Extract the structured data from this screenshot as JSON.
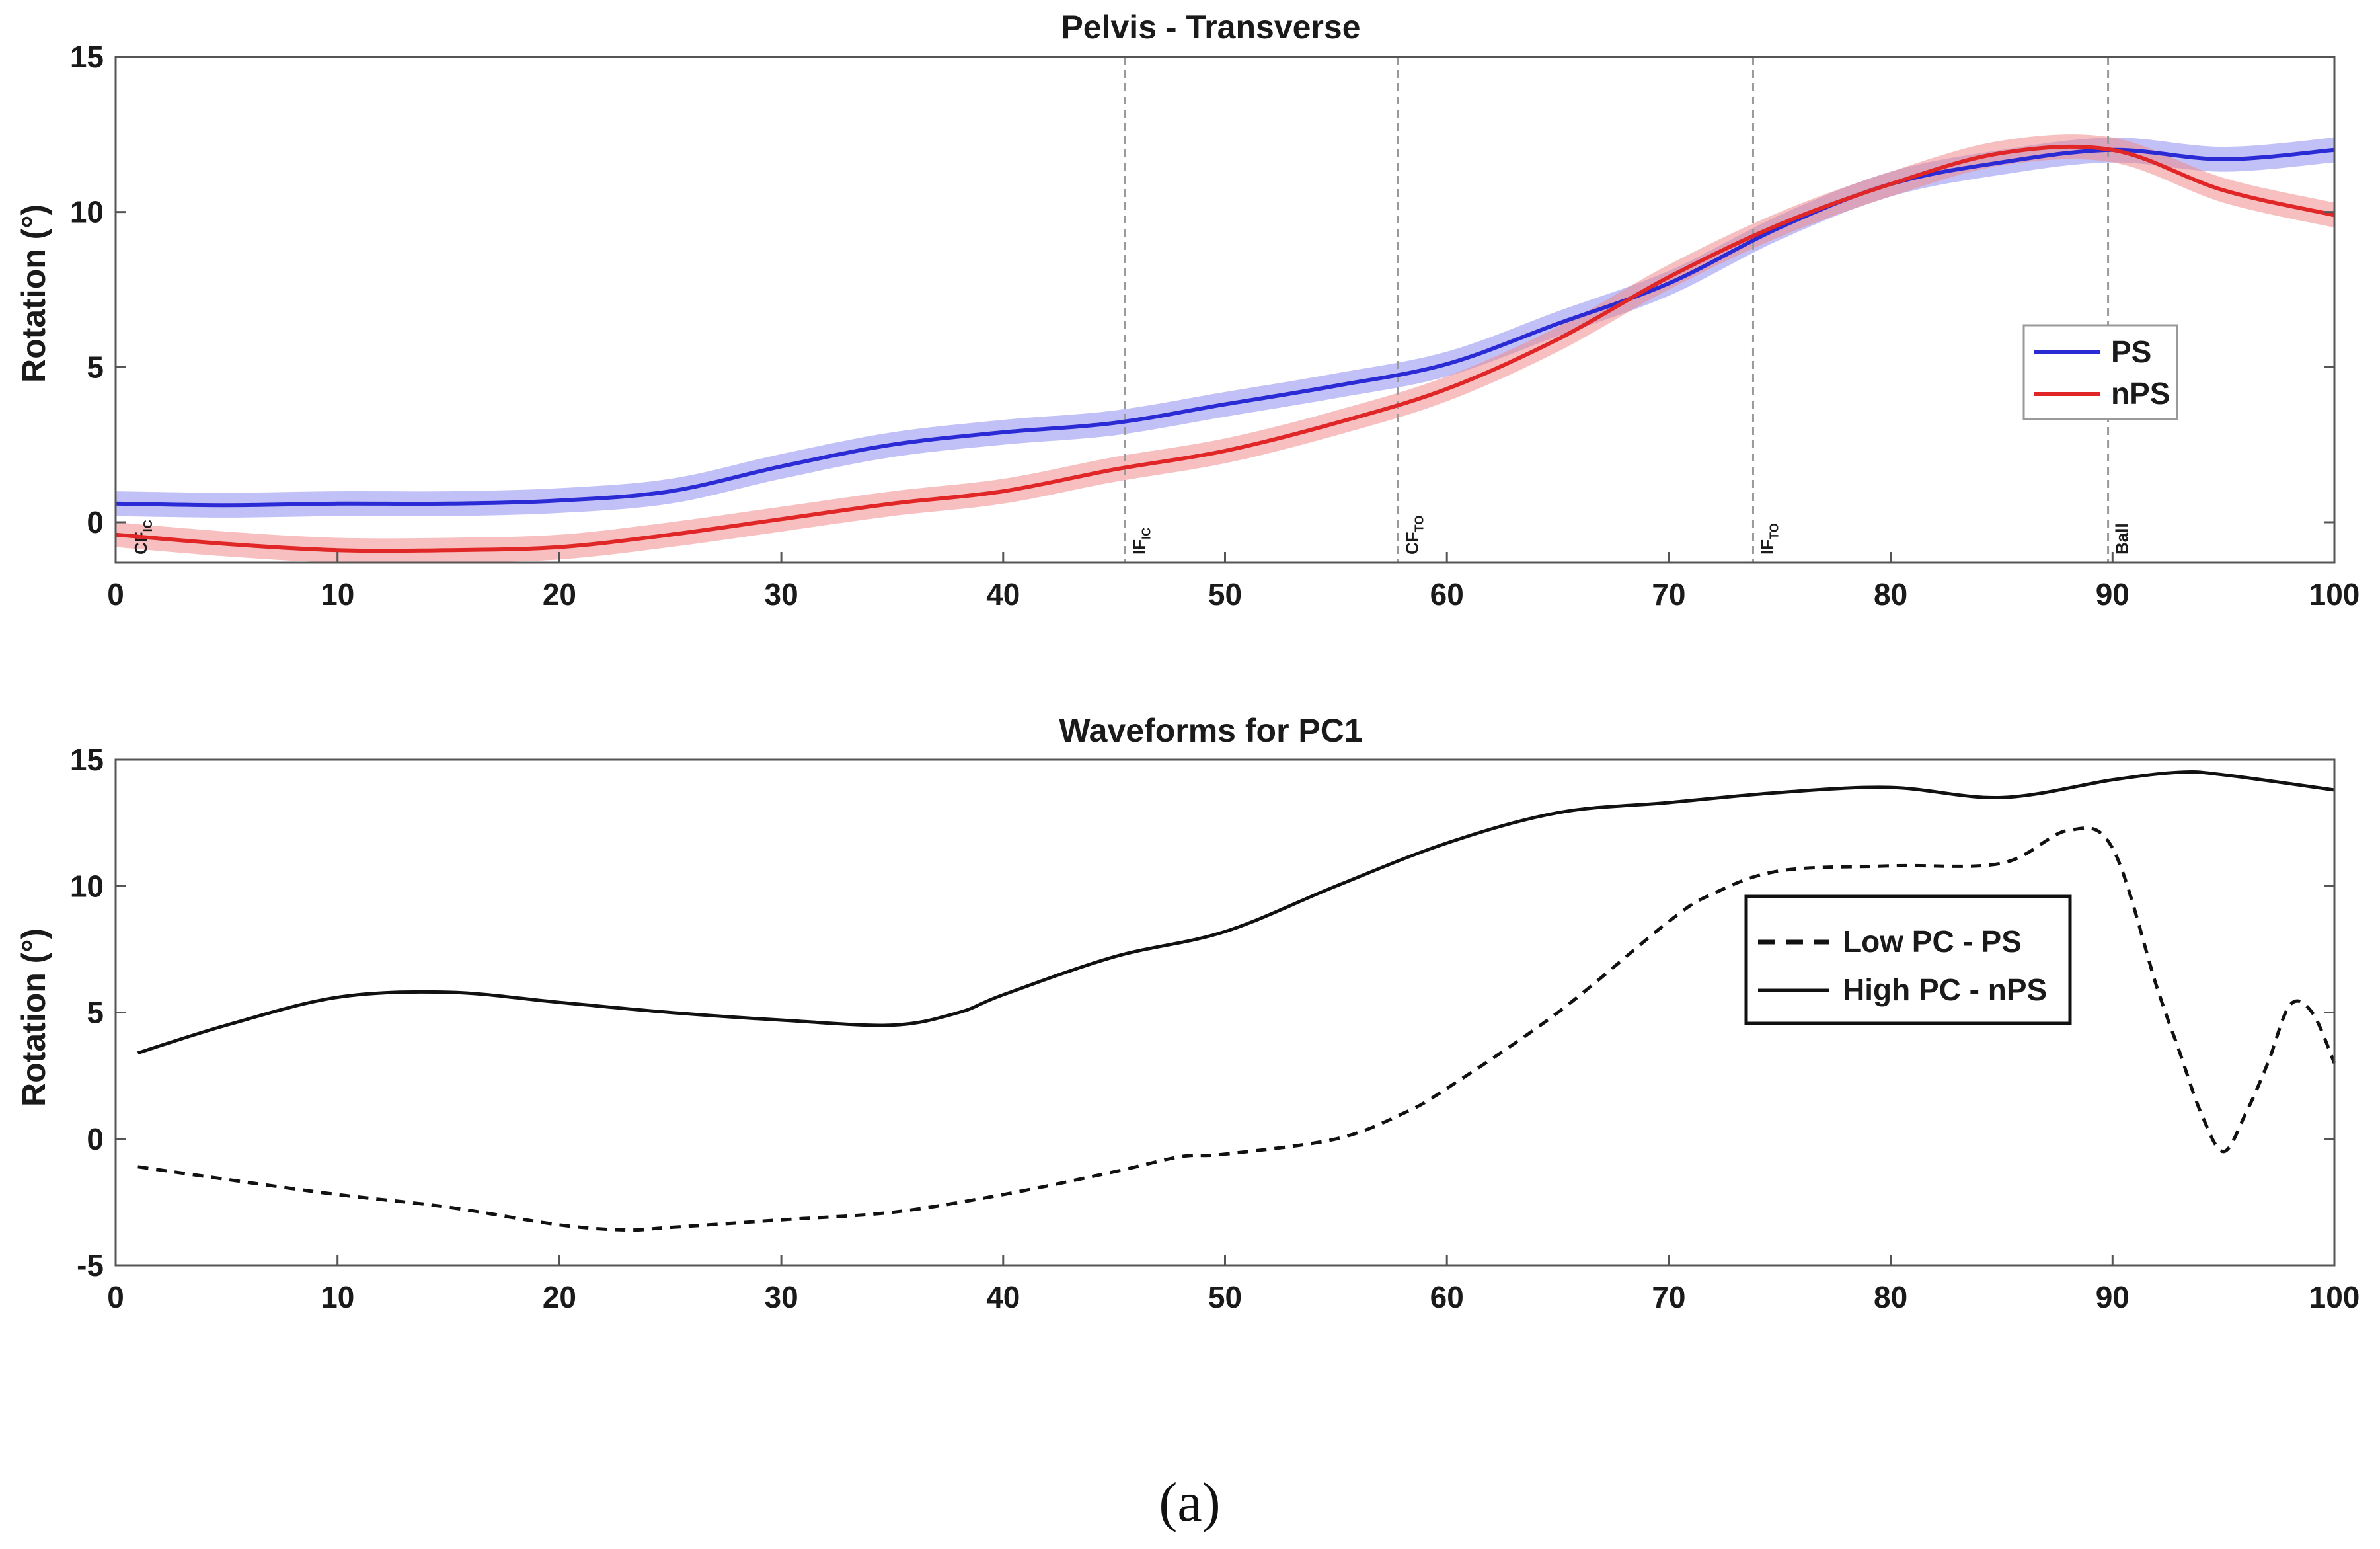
{
  "caption": "(a)",
  "colors": {
    "ps": "#2b2bd6",
    "nps": "#e02626",
    "band_ps": "#8e8ef0",
    "band_nps": "#f08a8a",
    "black": "#111111",
    "grid": "#9a9a9a"
  },
  "chart_data": [
    {
      "type": "line",
      "title": "Pelvis - Transverse",
      "xlabel": "",
      "ylabel": "Rotation (°)",
      "xlim": [
        0,
        100
      ],
      "ylim": [
        -1.3,
        15
      ],
      "xticks": [
        "0",
        "10",
        "20",
        "30",
        "40",
        "50",
        "60",
        "70",
        "80",
        "90",
        "100"
      ],
      "yticks": [
        "0",
        "5",
        "10",
        "15"
      ],
      "legend": {
        "position": "right-middle",
        "entries": [
          "PS",
          "nPS"
        ]
      },
      "events": [
        {
          "x": 0.5,
          "label": "CF",
          "sub": "IC"
        },
        {
          "x": 45.5,
          "label": "IF",
          "sub": "IC"
        },
        {
          "x": 57.8,
          "label": "CF",
          "sub": "TO"
        },
        {
          "x": 73.8,
          "label": "IF",
          "sub": "TO"
        },
        {
          "x": 89.8,
          "label": "Ball",
          "sub": ""
        }
      ],
      "series": [
        {
          "name": "PS",
          "style": "solid",
          "color_key": "ps",
          "band": 0.4,
          "x": [
            0,
            5,
            10,
            15,
            20,
            25,
            30,
            35,
            40,
            45,
            50,
            55,
            60,
            65,
            70,
            75,
            80,
            85,
            90,
            95,
            100
          ],
          "y": [
            0.6,
            0.55,
            0.6,
            0.6,
            0.7,
            1.0,
            1.8,
            2.5,
            2.9,
            3.2,
            3.8,
            4.4,
            5.1,
            6.4,
            7.7,
            9.5,
            10.9,
            11.6,
            12.0,
            11.7,
            12.0
          ]
        },
        {
          "name": "nPS",
          "style": "solid",
          "color_key": "nps",
          "band": 0.4,
          "x": [
            0,
            5,
            10,
            15,
            20,
            25,
            30,
            35,
            40,
            45,
            50,
            55,
            60,
            65,
            70,
            75,
            80,
            85,
            90,
            95,
            100
          ],
          "y": [
            -0.4,
            -0.7,
            -0.9,
            -0.9,
            -0.8,
            -0.4,
            0.1,
            0.6,
            1.0,
            1.7,
            2.3,
            3.2,
            4.3,
            5.9,
            7.9,
            9.6,
            10.9,
            11.9,
            12.0,
            10.7,
            9.9
          ]
        }
      ]
    },
    {
      "type": "line",
      "title": "Waveforms for PC1",
      "xlabel": "",
      "ylabel": "Rotation (°)",
      "xlim": [
        0,
        100
      ],
      "ylim": [
        -5,
        15
      ],
      "xticks": [
        "0",
        "10",
        "20",
        "30",
        "40",
        "50",
        "60",
        "70",
        "80",
        "90",
        "100"
      ],
      "yticks": [
        "-5",
        "0",
        "5",
        "10",
        "15"
      ],
      "legend": {
        "position": "right-middle",
        "entries": [
          "Low PC - PS",
          "High PC - nPS"
        ]
      },
      "series": [
        {
          "name": "Low PC - PS",
          "style": "dashed",
          "color_key": "black",
          "x": [
            1,
            5,
            10,
            15,
            20,
            23,
            25,
            30,
            35,
            40,
            45,
            48,
            50,
            55,
            58,
            60,
            65,
            70,
            72,
            75,
            80,
            85,
            88,
            90,
            92,
            93,
            94,
            95,
            96,
            97,
            98,
            99,
            100
          ],
          "y": [
            -1.1,
            -1.6,
            -2.2,
            -2.7,
            -3.4,
            -3.6,
            -3.5,
            -3.2,
            -2.9,
            -2.2,
            -1.3,
            -0.7,
            -0.6,
            0.0,
            1.0,
            2.0,
            5.0,
            8.6,
            9.7,
            10.6,
            10.8,
            10.9,
            12.2,
            11.5,
            6.0,
            3.5,
            1.0,
            -0.5,
            1.0,
            3.0,
            5.3,
            5.0,
            3.0
          ]
        },
        {
          "name": "High PC - nPS",
          "style": "solid",
          "color_key": "black",
          "x": [
            1,
            5,
            10,
            15,
            20,
            25,
            30,
            35,
            38,
            40,
            45,
            50,
            55,
            60,
            65,
            70,
            75,
            80,
            85,
            90,
            93,
            95,
            100
          ],
          "y": [
            3.4,
            4.5,
            5.6,
            5.8,
            5.4,
            5.0,
            4.7,
            4.5,
            5.0,
            5.7,
            7.2,
            8.2,
            10.0,
            11.7,
            12.9,
            13.3,
            13.7,
            13.9,
            13.5,
            14.2,
            14.5,
            14.4,
            13.8
          ]
        }
      ]
    }
  ]
}
